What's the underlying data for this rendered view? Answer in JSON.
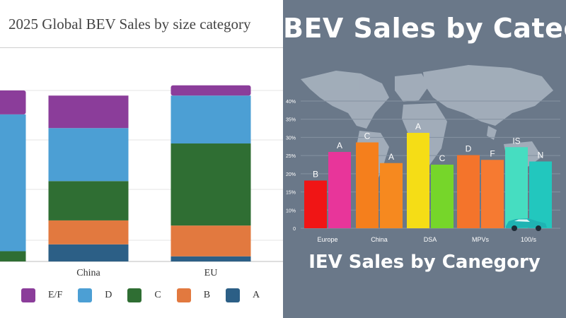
{
  "chart_data": [
    {
      "type": "bar",
      "stacked": true,
      "normalized": true,
      "title": "2025 Global BEV Sales by size category",
      "categories": [
        "",
        "China",
        "EU"
      ],
      "series": [
        {
          "name": "A",
          "color": "#2c5f86",
          "values": [
            0,
            0.1,
            0.03
          ]
        },
        {
          "name": "B",
          "color": "#e2793f",
          "values": [
            0,
            0.14,
            0.18
          ]
        },
        {
          "name": "C",
          "color": "#2f6e33",
          "values": [
            0.06,
            0.23,
            0.48
          ]
        },
        {
          "name": "D",
          "color": "#4c9fd4",
          "values": [
            0.8,
            0.31,
            0.28
          ]
        },
        {
          "name": "E/F",
          "color": "#8b3d9a",
          "values": [
            0.14,
            0.19,
            0.06
          ]
        }
      ],
      "legend": "bottom",
      "legend_order": [
        "E/F",
        "D",
        "C",
        "B",
        "A"
      ],
      "grid": true
    },
    {
      "type": "bar",
      "title": "BEV Sales by Category",
      "subtitle": "IEV Sales by Canegory",
      "ylim": [
        0,
        40
      ],
      "yticks": [
        "0",
        "10%",
        "15%",
        "20%",
        "25%",
        "30%",
        "35%",
        "40%"
      ],
      "groups": [
        "Europe",
        "China",
        "DSA",
        "MPVs",
        "100/s"
      ],
      "bars": [
        {
          "group": 0,
          "label": "B",
          "value": 15,
          "color": "#f01515"
        },
        {
          "group": 0,
          "label": "A",
          "value": 24,
          "color": "#e8359a"
        },
        {
          "group": 1,
          "label": "C",
          "value": 27,
          "color": "#f57f1c"
        },
        {
          "group": 1,
          "label": "A",
          "value": 20.5,
          "color": "#f6891f"
        },
        {
          "group": 2,
          "label": "A",
          "value": 30,
          "color": "#f5dd16"
        },
        {
          "group": 2,
          "label": "C",
          "value": 20,
          "color": "#76d62a"
        },
        {
          "group": 3,
          "label": "D",
          "value": 23,
          "color": "#f4742b"
        },
        {
          "group": 3,
          "label": "F",
          "value": 21.5,
          "color": "#f67a31"
        },
        {
          "group": 4,
          "label": "IS",
          "value": 25.5,
          "color": "#46ddc1"
        },
        {
          "group": 4,
          "label": "N",
          "value": 21,
          "color": "#22c7be"
        }
      ],
      "grid": true
    }
  ]
}
